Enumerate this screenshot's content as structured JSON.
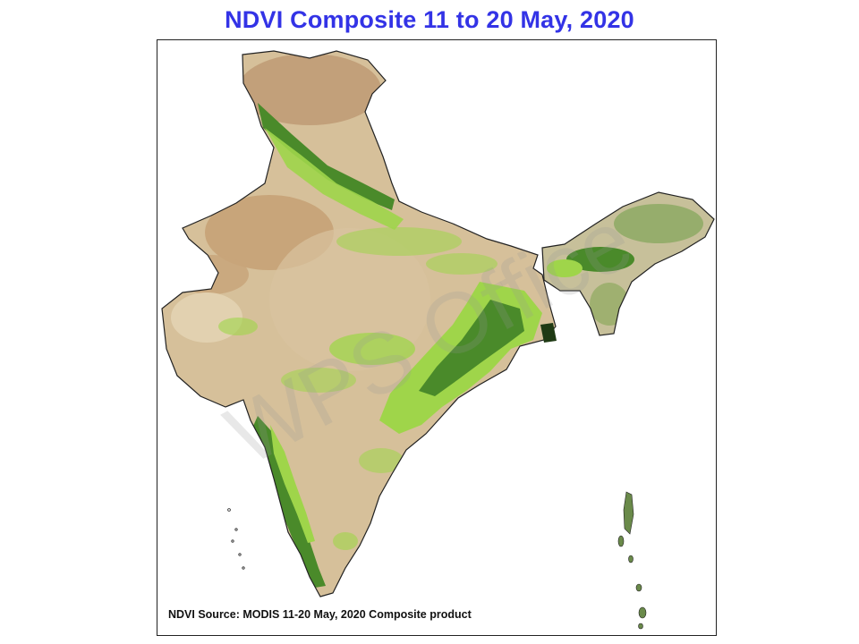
{
  "title": "NDVI Composite 11 to 20 May, 2020",
  "map": {
    "region": "India",
    "source_note": "NDVI Source: MODIS 11-20 May, 2020 Composite product",
    "colors": {
      "title": "#3333e6",
      "barren": "#c8a57a",
      "dry_land": "#d6c09a",
      "sparse_vegetation": "#9fd54a",
      "dense_vegetation": "#4a8a2a",
      "boundary": "#222222"
    }
  },
  "watermark": "WPS Office"
}
